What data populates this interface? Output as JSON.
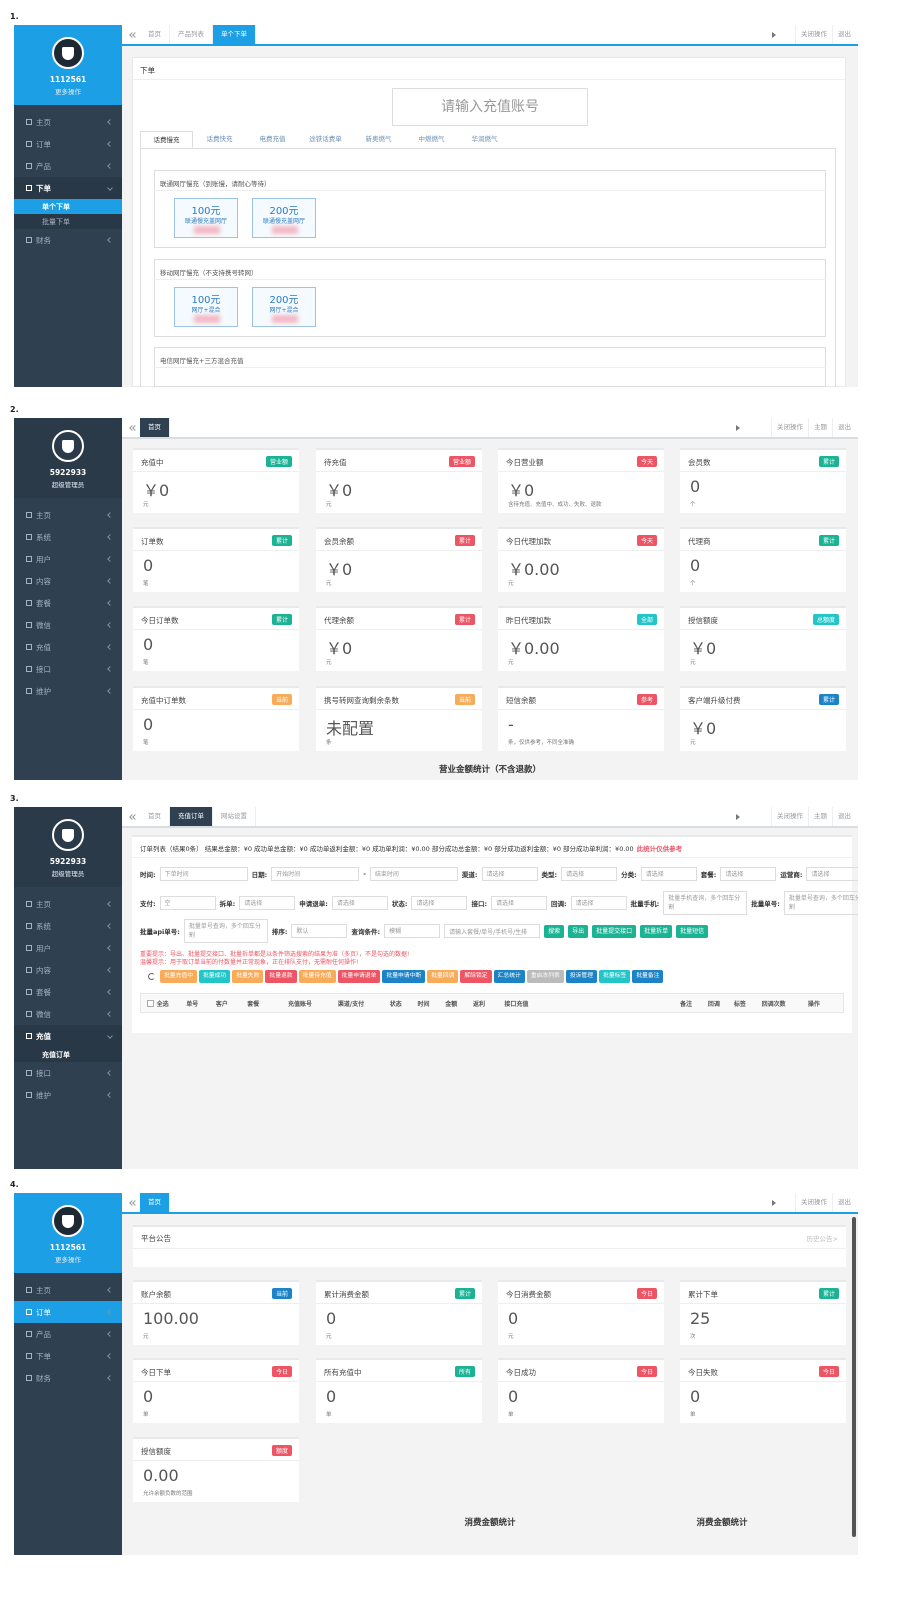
{
  "screens": [
    {
      "label": "1.",
      "theme": "blue",
      "sidebar": {
        "user": "1112561",
        "role": "更多操作",
        "menu": [
          {
            "text": "主页"
          },
          {
            "text": "订单"
          },
          {
            "text": "产品"
          },
          {
            "text": "下单",
            "open": true,
            "sub": [
              {
                "text": "单个下单",
                "active": true
              },
              {
                "text": "批量下单"
              }
            ]
          },
          {
            "text": "财务"
          }
        ]
      },
      "tabs": [
        {
          "text": "首页"
        },
        {
          "text": "产品列表"
        },
        {
          "text": "单个下单",
          "active": true
        }
      ],
      "toolbar": [
        "关闭操作",
        "退出"
      ],
      "order": {
        "title": "下单",
        "placeholder": "请输入充值账号",
        "categories": [
          {
            "text": "话费慢充",
            "active": true
          },
          {
            "text": "话费快充"
          },
          {
            "text": "电费充值"
          },
          {
            "text": "途铁话费单"
          },
          {
            "text": "新奥燃气"
          },
          {
            "text": "中燃燃气"
          },
          {
            "text": "华润燃气"
          }
        ],
        "groups": [
          {
            "title": "联通网厅慢充（到账慢，请耐心等待）",
            "cards": [
              {
                "amount": "100元",
                "note": "联通慢充盖网厅"
              },
              {
                "amount": "200元",
                "note": "联通慢充盖网厅"
              }
            ]
          },
          {
            "title": "移动网厅慢充（不支持携号转网）",
            "cards": [
              {
                "amount": "100元",
                "note": "网厅+混合"
              },
              {
                "amount": "200元",
                "note": "网厅+混合"
              }
            ]
          },
          {
            "title": "电信网厅慢充+三方混合充值",
            "cards": []
          }
        ]
      }
    },
    {
      "label": "2.",
      "theme": "dark",
      "sidebar": {
        "user": "5922933",
        "role": "超级管理员",
        "menu": [
          {
            "text": "主页"
          },
          {
            "text": "系统"
          },
          {
            "text": "用户"
          },
          {
            "text": "内容"
          },
          {
            "text": "套餐"
          },
          {
            "text": "微信"
          },
          {
            "text": "充值"
          },
          {
            "text": "接口"
          },
          {
            "text": "维护"
          }
        ]
      },
      "tabs": [
        {
          "text": "首页",
          "active": true
        }
      ],
      "toolbar": [
        "关闭操作",
        "主题",
        "退出"
      ],
      "cards": [
        {
          "title": "充值中",
          "badge": "营业额",
          "badge_color": "#1ab394",
          "value": "￥0",
          "unit": "元"
        },
        {
          "title": "待充值",
          "badge": "营业额",
          "badge_color": "#ed5565",
          "value": "￥0",
          "unit": "元"
        },
        {
          "title": "今日营业额",
          "badge": "今天",
          "badge_color": "#ed5565",
          "value": "￥0",
          "unit": "含待充值、充值中、成功、失败、退款"
        },
        {
          "title": "会员数",
          "badge": "累计",
          "badge_color": "#1ab394",
          "value": "0",
          "unit": "个"
        },
        {
          "title": "订单数",
          "badge": "累计",
          "badge_color": "#1ab394",
          "value": "0",
          "unit": "笔"
        },
        {
          "title": "会员余额",
          "badge": "累计",
          "badge_color": "#ed5565",
          "value": "￥0",
          "unit": "元"
        },
        {
          "title": "今日代理加款",
          "badge": "今天",
          "badge_color": "#ed5565",
          "value": "￥0.00",
          "unit": "元"
        },
        {
          "title": "代理商",
          "badge": "累计",
          "badge_color": "#1ab394",
          "value": "0",
          "unit": "个"
        },
        {
          "title": "今日订单数",
          "badge": "累计",
          "badge_color": "#1ab394",
          "value": "0",
          "unit": "笔"
        },
        {
          "title": "代理余额",
          "badge": "累计",
          "badge_color": "#ed5565",
          "value": "￥0",
          "unit": "元"
        },
        {
          "title": "昨日代理加款",
          "badge": "全部",
          "badge_color": "#23c6c8",
          "value": "￥0.00",
          "unit": "元"
        },
        {
          "title": "授信额度",
          "badge": "总额度",
          "badge_color": "#23c6c8",
          "value": "￥0",
          "unit": "元"
        },
        {
          "title": "充值中订单数",
          "badge": "当前",
          "badge_color": "#f8ac59",
          "value": "0",
          "unit": "笔"
        },
        {
          "title": "携号转网查询剩余条数",
          "badge": "当前",
          "badge_color": "#f8ac59",
          "value": "未配置",
          "unit": "条"
        },
        {
          "title": "短信余额",
          "badge": "参考",
          "badge_color": "#ed5565",
          "value": "-",
          "unit": "条，仅供参考，不同全准确"
        },
        {
          "title": "客户端升级付费",
          "badge": "累计",
          "badge_color": "#1c84c6",
          "value": "￥0",
          "unit": "元"
        }
      ],
      "sections": [
        "营业金额统计（不含退款）"
      ]
    },
    {
      "label": "3.",
      "theme": "dark",
      "sidebar": {
        "user": "5922933",
        "role": "超级管理员",
        "menu": [
          {
            "text": "主页"
          },
          {
            "text": "系统"
          },
          {
            "text": "用户"
          },
          {
            "text": "内容"
          },
          {
            "text": "套餐"
          },
          {
            "text": "微信"
          },
          {
            "text": "充值",
            "open": true,
            "sub": [
              {
                "text": "充值订单",
                "active": true
              }
            ]
          },
          {
            "text": "接口"
          },
          {
            "text": "维护"
          }
        ]
      },
      "tabs": [
        {
          "text": "首页"
        },
        {
          "text": "充值订单",
          "active": true
        },
        {
          "text": "网站设置"
        }
      ],
      "toolbar": [
        "关闭操作",
        "主题",
        "退出"
      ],
      "orders": {
        "summary": "订单列表（结果0条） 结果总金额：¥0 成功单总金额：¥0 成功单返利金额：¥0 成功单利润：¥0.00 部分成功总金额：¥0 部分成功返利金额：¥0 部分成功单利润：¥0.00",
        "summary_note": "此统计仅供参考",
        "filters": [
          [
            {
              "label": "时间:",
              "value": "下单时间"
            },
            {
              "label": "日期:",
              "value": "开始时间"
            },
            {
              "label": "-",
              "value": "结束时间"
            },
            {
              "label": "渠道:",
              "value": "请选择"
            },
            {
              "label": "类型:",
              "value": "请选择"
            },
            {
              "label": "分类:",
              "value": "请选择"
            },
            {
              "label": "套餐:",
              "value": "请选择"
            },
            {
              "label": "运营商:",
              "value": "请选择"
            }
          ],
          [
            {
              "label": "支付:",
              "value": "空"
            },
            {
              "label": "拆单:",
              "value": "请选择"
            },
            {
              "label": "申请退单:",
              "value": "请选择"
            },
            {
              "label": "状态:",
              "value": "请选择"
            },
            {
              "label": "接口:",
              "value": "请选择"
            },
            {
              "label": "回调:",
              "value": "请选择"
            },
            {
              "label": "批量手机:",
              "value": "批量手机查询，多个回车分割"
            },
            {
              "label": "批量单号:",
              "value": "批量单号查询，多个回车分割"
            }
          ],
          [
            {
              "label": "批量api单号:",
              "value": "批量单号查询，多个回车分割"
            },
            {
              "label": "排序:",
              "value": "默认"
            },
            {
              "label": "查询条件:",
              "value": "模糊"
            }
          ]
        ],
        "search_placeholder": "请输入套餐/单号/手机号/生排",
        "actions": [
          {
            "text": "搜索",
            "color": "#1ab394"
          },
          {
            "text": "导出",
            "color": "#1ab394"
          },
          {
            "text": "批量提交接口",
            "color": "#1ab394"
          },
          {
            "text": "批量拆单",
            "color": "#1ab394"
          },
          {
            "text": "批量短信",
            "color": "#1ab394"
          }
        ],
        "notes": [
          "重要提示：导出、批量提交接口、批量拆单都是以条件筛选搜索的结果为准（多页），不是勾选的数据!",
          "温馨提示：用于取订单当前的付数量并正常现象，正在排队支付，无需耐任何操作!"
        ],
        "batch": [
          {
            "text": "批量充值中",
            "color": "#f8ac59"
          },
          {
            "text": "批量成功",
            "color": "#23c6c8"
          },
          {
            "text": "批量失败",
            "color": "#f8ac59"
          },
          {
            "text": "批量退款",
            "color": "#ed5565"
          },
          {
            "text": "批量待充值",
            "color": "#f8ac59"
          },
          {
            "text": "批量申请退单",
            "color": "#ed5565"
          },
          {
            "text": "批量申请中断",
            "color": "#1c84c6"
          },
          {
            "text": "批量回调",
            "color": "#f8ac59"
          },
          {
            "text": "解除锁定",
            "color": "#ed5565"
          },
          {
            "text": "汇总统计",
            "color": "#1c84c6"
          },
          {
            "text": "重启冻列表",
            "color": "#bbbbbb"
          },
          {
            "text": "投诉管理",
            "color": "#1c84c6"
          },
          {
            "text": "批量标签",
            "color": "#23c6c8"
          },
          {
            "text": "批量备注",
            "color": "#1c84c6"
          }
        ],
        "headers": [
          "全选",
          "单号",
          "客户",
          "套餐",
          "充值账号",
          "渠道/支付",
          "状态",
          "时间",
          "金额",
          "返利",
          "接口充值",
          "备注",
          "回调",
          "标签",
          "回调次数",
          "操作"
        ]
      }
    },
    {
      "label": "4.",
      "theme": "blue",
      "sidebar": {
        "user": "1112561",
        "role": "更多操作",
        "menu": [
          {
            "text": "主页"
          },
          {
            "text": "订单",
            "active": true
          },
          {
            "text": "产品"
          },
          {
            "text": "下单"
          },
          {
            "text": "财务"
          }
        ]
      },
      "tabs": [
        {
          "text": "首页",
          "active": true
        }
      ],
      "toolbar": [
        "关闭操作",
        "退出"
      ],
      "notice": {
        "title": "平台公告",
        "link": "历史公告>"
      },
      "cards": [
        {
          "title": "账户余额",
          "badge": "当前",
          "badge_color": "#1c84c6",
          "value": "100.00",
          "unit": "元"
        },
        {
          "title": "累计消费金额",
          "badge": "累计",
          "badge_color": "#1ab394",
          "value": "0",
          "unit": "元"
        },
        {
          "title": "今日消费金额",
          "badge": "今日",
          "badge_color": "#ed5565",
          "value": "0",
          "unit": "元"
        },
        {
          "title": "累计下单",
          "badge": "累计",
          "badge_color": "#1ab394",
          "value": "25",
          "unit": "次"
        },
        {
          "title": "今日下单",
          "badge": "今日",
          "badge_color": "#ed5565",
          "value": "0",
          "unit": "单"
        },
        {
          "title": "所有充值中",
          "badge": "所有",
          "badge_color": "#1ab394",
          "value": "0",
          "unit": "单"
        },
        {
          "title": "今日成功",
          "badge": "今日",
          "badge_color": "#ed5565",
          "value": "0",
          "unit": "单"
        },
        {
          "title": "今日失败",
          "badge": "今日",
          "badge_color": "#ed5565",
          "value": "0",
          "unit": "单"
        },
        {
          "title": "授信额度",
          "badge": "额度",
          "badge_color": "#ed5565",
          "value": "0.00",
          "unit": "允许余额负数的范围"
        }
      ],
      "sections": [
        "消费金额统计",
        "消费金额统计"
      ]
    }
  ]
}
